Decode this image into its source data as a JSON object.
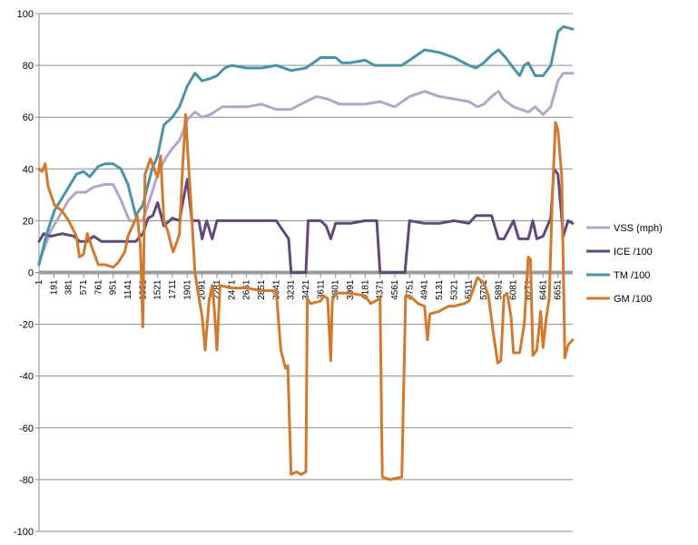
{
  "chart_data": {
    "type": "line",
    "title": "",
    "xlabel": "",
    "ylabel": "",
    "ylim": [
      -100,
      100
    ],
    "ytick_step": 20,
    "xlim": [
      1,
      6841
    ],
    "grid": {
      "horizontal": true,
      "vertical": false
    },
    "legend_position": "right",
    "x_ticks": [
      1,
      191,
      381,
      571,
      761,
      951,
      1141,
      1331,
      1521,
      1711,
      1901,
      2091,
      2281,
      2471,
      2661,
      2851,
      3041,
      3231,
      3421,
      3611,
      3801,
      3991,
      4181,
      4371,
      4561,
      4751,
      4941,
      5131,
      5321,
      5511,
      5701,
      5891,
      6081,
      6271,
      6461,
      6651
    ],
    "series": [
      {
        "name": "VSS (mph)",
        "color": "#B3A6C8",
        "points": [
          [
            1,
            4
          ],
          [
            150,
            16
          ],
          [
            380,
            28
          ],
          [
            480,
            31
          ],
          [
            600,
            31
          ],
          [
            700,
            33
          ],
          [
            850,
            34
          ],
          [
            951,
            34
          ],
          [
            1050,
            28
          ],
          [
            1160,
            20
          ],
          [
            1331,
            20
          ],
          [
            1450,
            31
          ],
          [
            1521,
            38
          ],
          [
            1620,
            44
          ],
          [
            1711,
            48
          ],
          [
            1800,
            51
          ],
          [
            1901,
            59
          ],
          [
            2000,
            62
          ],
          [
            2091,
            60
          ],
          [
            2200,
            61
          ],
          [
            2350,
            64
          ],
          [
            2661,
            64
          ],
          [
            2851,
            65
          ],
          [
            2950,
            64
          ],
          [
            3041,
            63
          ],
          [
            3231,
            63
          ],
          [
            3421,
            66
          ],
          [
            3560,
            68
          ],
          [
            3700,
            67
          ],
          [
            3850,
            65
          ],
          [
            4181,
            65
          ],
          [
            4371,
            66
          ],
          [
            4561,
            64
          ],
          [
            4751,
            68
          ],
          [
            4941,
            70
          ],
          [
            5131,
            68
          ],
          [
            5321,
            67
          ],
          [
            5511,
            66
          ],
          [
            5620,
            64
          ],
          [
            5701,
            65
          ],
          [
            5800,
            68
          ],
          [
            5891,
            70
          ],
          [
            5950,
            67
          ],
          [
            6081,
            64
          ],
          [
            6271,
            62
          ],
          [
            6360,
            64
          ],
          [
            6461,
            61
          ],
          [
            6560,
            64
          ],
          [
            6651,
            74
          ],
          [
            6720,
            77
          ],
          [
            6841,
            77
          ]
        ]
      },
      {
        "name": "ICE /100",
        "color": "#604A7B",
        "points": [
          [
            1,
            12
          ],
          [
            60,
            15
          ],
          [
            150,
            14
          ],
          [
            300,
            15
          ],
          [
            450,
            14
          ],
          [
            520,
            12
          ],
          [
            620,
            12
          ],
          [
            700,
            14
          ],
          [
            800,
            12
          ],
          [
            1141,
            12
          ],
          [
            1200,
            12
          ],
          [
            1240,
            12
          ],
          [
            1331,
            15
          ],
          [
            1400,
            21
          ],
          [
            1460,
            22
          ],
          [
            1521,
            27
          ],
          [
            1600,
            18
          ],
          [
            1711,
            21
          ],
          [
            1800,
            20
          ],
          [
            1850,
            28
          ],
          [
            1901,
            36
          ],
          [
            1960,
            20
          ],
          [
            2050,
            20
          ],
          [
            2091,
            13
          ],
          [
            2150,
            20
          ],
          [
            2220,
            13
          ],
          [
            2281,
            20
          ],
          [
            2661,
            20
          ],
          [
            3041,
            20
          ],
          [
            3200,
            13
          ],
          [
            3231,
            0
          ],
          [
            3421,
            0
          ],
          [
            3450,
            20
          ],
          [
            3611,
            20
          ],
          [
            3680,
            18
          ],
          [
            3740,
            13
          ],
          [
            3801,
            19
          ],
          [
            3991,
            19
          ],
          [
            4181,
            20
          ],
          [
            4330,
            20
          ],
          [
            4371,
            0
          ],
          [
            4690,
            0
          ],
          [
            4750,
            20
          ],
          [
            4941,
            19
          ],
          [
            5131,
            19
          ],
          [
            5321,
            20
          ],
          [
            5511,
            19
          ],
          [
            5600,
            22
          ],
          [
            5701,
            22
          ],
          [
            5800,
            22
          ],
          [
            5891,
            13
          ],
          [
            5960,
            13
          ],
          [
            6081,
            20
          ],
          [
            6150,
            13
          ],
          [
            6271,
            13
          ],
          [
            6330,
            20
          ],
          [
            6380,
            13
          ],
          [
            6461,
            14
          ],
          [
            6560,
            21
          ],
          [
            6600,
            40
          ],
          [
            6651,
            38
          ],
          [
            6720,
            14
          ],
          [
            6780,
            20
          ],
          [
            6841,
            19
          ]
        ]
      },
      {
        "name": "TM /100",
        "color": "#4A92A7",
        "points": [
          [
            1,
            3
          ],
          [
            100,
            15
          ],
          [
            200,
            24
          ],
          [
            381,
            33
          ],
          [
            480,
            38
          ],
          [
            571,
            39
          ],
          [
            650,
            37
          ],
          [
            761,
            41
          ],
          [
            850,
            42
          ],
          [
            951,
            42
          ],
          [
            1050,
            40
          ],
          [
            1141,
            34
          ],
          [
            1240,
            22
          ],
          [
            1331,
            26
          ],
          [
            1450,
            40
          ],
          [
            1521,
            45
          ],
          [
            1600,
            57
          ],
          [
            1711,
            60
          ],
          [
            1801,
            64
          ],
          [
            1901,
            72
          ],
          [
            2000,
            77
          ],
          [
            2091,
            74
          ],
          [
            2200,
            75
          ],
          [
            2281,
            76
          ],
          [
            2380,
            79
          ],
          [
            2471,
            80
          ],
          [
            2661,
            79
          ],
          [
            2851,
            79
          ],
          [
            3041,
            80
          ],
          [
            3231,
            78
          ],
          [
            3421,
            79
          ],
          [
            3611,
            83
          ],
          [
            3801,
            83
          ],
          [
            3880,
            81
          ],
          [
            3991,
            81
          ],
          [
            4181,
            82
          ],
          [
            4300,
            80
          ],
          [
            4371,
            80
          ],
          [
            4561,
            80
          ],
          [
            4651,
            80
          ],
          [
            4750,
            82
          ],
          [
            4941,
            86
          ],
          [
            5131,
            85
          ],
          [
            5321,
            83
          ],
          [
            5511,
            80
          ],
          [
            5601,
            79
          ],
          [
            5701,
            81
          ],
          [
            5800,
            84
          ],
          [
            5891,
            86
          ],
          [
            5980,
            83
          ],
          [
            6081,
            79
          ],
          [
            6160,
            76
          ],
          [
            6220,
            80
          ],
          [
            6271,
            81
          ],
          [
            6360,
            76
          ],
          [
            6461,
            76
          ],
          [
            6560,
            80
          ],
          [
            6651,
            93
          ],
          [
            6720,
            95
          ],
          [
            6841,
            94
          ]
        ]
      },
      {
        "name": "GM /100",
        "color": "#D0792F",
        "points": [
          [
            1,
            40
          ],
          [
            40,
            39
          ],
          [
            80,
            42
          ],
          [
            120,
            33
          ],
          [
            200,
            26
          ],
          [
            290,
            24
          ],
          [
            381,
            20
          ],
          [
            480,
            14
          ],
          [
            520,
            6
          ],
          [
            571,
            7
          ],
          [
            620,
            15
          ],
          [
            700,
            8
          ],
          [
            761,
            3
          ],
          [
            850,
            3
          ],
          [
            951,
            2
          ],
          [
            1020,
            4
          ],
          [
            1100,
            8
          ],
          [
            1141,
            14
          ],
          [
            1200,
            18
          ],
          [
            1260,
            22
          ],
          [
            1300,
            10
          ],
          [
            1331,
            -21
          ],
          [
            1360,
            38
          ],
          [
            1430,
            44
          ],
          [
            1500,
            38
          ],
          [
            1521,
            37
          ],
          [
            1560,
            45
          ],
          [
            1600,
            20
          ],
          [
            1650,
            16
          ],
          [
            1700,
            10
          ],
          [
            1720,
            8
          ],
          [
            1770,
            12
          ],
          [
            1800,
            15
          ],
          [
            1840,
            40
          ],
          [
            1880,
            61
          ],
          [
            1901,
            50
          ],
          [
            1950,
            26
          ],
          [
            2000,
            0
          ],
          [
            2040,
            -8
          ],
          [
            2091,
            -17
          ],
          [
            2130,
            -30
          ],
          [
            2180,
            -11
          ],
          [
            2220,
            -5
          ],
          [
            2250,
            -15
          ],
          [
            2281,
            -30
          ],
          [
            2320,
            -5
          ],
          [
            2471,
            -6
          ],
          [
            2661,
            -6
          ],
          [
            2851,
            -7
          ],
          [
            3041,
            -7
          ],
          [
            3100,
            -30
          ],
          [
            3160,
            -37
          ],
          [
            3190,
            -36
          ],
          [
            3231,
            -78
          ],
          [
            3300,
            -77
          ],
          [
            3360,
            -78
          ],
          [
            3421,
            -77
          ],
          [
            3440,
            -10
          ],
          [
            3480,
            -12
          ],
          [
            3611,
            -11
          ],
          [
            3650,
            -9
          ],
          [
            3700,
            -10
          ],
          [
            3740,
            -34
          ],
          [
            3760,
            -11
          ],
          [
            3801,
            -8
          ],
          [
            3991,
            -8
          ],
          [
            4181,
            -9
          ],
          [
            4250,
            -12
          ],
          [
            4371,
            -10
          ],
          [
            4400,
            -79
          ],
          [
            4500,
            -80
          ],
          [
            4650,
            -79
          ],
          [
            4700,
            -9
          ],
          [
            4751,
            -9
          ],
          [
            4860,
            -12
          ],
          [
            4941,
            -13
          ],
          [
            4980,
            -26
          ],
          [
            5010,
            -16
          ],
          [
            5131,
            -15
          ],
          [
            5250,
            -13
          ],
          [
            5321,
            -13
          ],
          [
            5450,
            -12
          ],
          [
            5511,
            -11
          ],
          [
            5560,
            -7
          ],
          [
            5620,
            -2
          ],
          [
            5701,
            -4
          ],
          [
            5760,
            -9
          ],
          [
            5830,
            -25
          ],
          [
            5880,
            -35
          ],
          [
            5920,
            -34
          ],
          [
            5960,
            -9
          ],
          [
            6000,
            -8
          ],
          [
            6050,
            -17
          ],
          [
            6081,
            -31
          ],
          [
            6160,
            -31
          ],
          [
            6220,
            -20
          ],
          [
            6271,
            6
          ],
          [
            6300,
            5
          ],
          [
            6330,
            -32
          ],
          [
            6380,
            -30
          ],
          [
            6430,
            -15
          ],
          [
            6461,
            -29
          ],
          [
            6500,
            -18
          ],
          [
            6540,
            -10
          ],
          [
            6580,
            30
          ],
          [
            6620,
            58
          ],
          [
            6651,
            55
          ],
          [
            6700,
            37
          ],
          [
            6740,
            -33
          ],
          [
            6780,
            -28
          ],
          [
            6841,
            -26
          ]
        ]
      }
    ]
  }
}
